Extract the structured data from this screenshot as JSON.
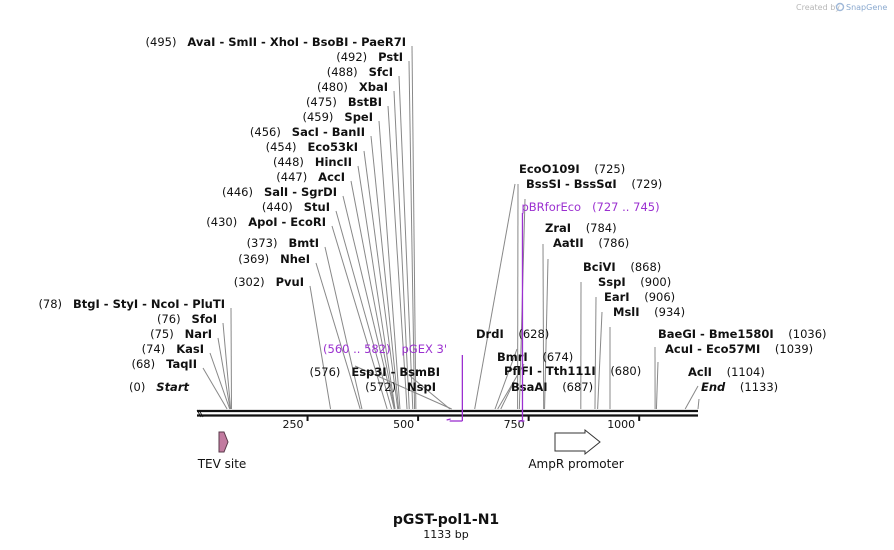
{
  "credit": {
    "text": "Created by",
    "brand": "SnapGene"
  },
  "plasmid": {
    "name": "pGST-pol1-N1",
    "length_label": "1133 bp",
    "length": 1133
  },
  "ruler": {
    "ticks": [
      {
        "pos": 250,
        "label": "250"
      },
      {
        "pos": 500,
        "label": "500"
      },
      {
        "pos": 750,
        "label": "750"
      },
      {
        "pos": 1000,
        "label": "1000"
      }
    ]
  },
  "sites": [
    {
      "pos": 495,
      "text": "AvaI  - SmII  - XhoI  - BsoBI  - PaeR7I",
      "num": "(495)",
      "side": "left"
    },
    {
      "pos": 492,
      "text": "PstI",
      "num": "(492)",
      "side": "left"
    },
    {
      "pos": 488,
      "text": "SfcI",
      "num": "(488)",
      "side": "left"
    },
    {
      "pos": 480,
      "text": "XbaI",
      "num": "(480)",
      "side": "left"
    },
    {
      "pos": 475,
      "text": "BstBI",
      "num": "(475)",
      "side": "left"
    },
    {
      "pos": 459,
      "text": "SpeI",
      "num": "(459)",
      "side": "left"
    },
    {
      "pos": 456,
      "text": "SacI  - BanII",
      "num": "(456)",
      "side": "left"
    },
    {
      "pos": 454,
      "text": "Eco53kI",
      "num": "(454)",
      "side": "left"
    },
    {
      "pos": 448,
      "text": "HincII",
      "num": "(448)",
      "side": "left"
    },
    {
      "pos": 447,
      "text": "AccI",
      "num": "(447)",
      "side": "left"
    },
    {
      "pos": 446,
      "text": "SalI  - SgrDI",
      "num": "(446)",
      "side": "left"
    },
    {
      "pos": 440,
      "text": "StuI",
      "num": "(440)",
      "side": "left"
    },
    {
      "pos": 430,
      "text": "ApoI  - EcoRI",
      "num": "(430)",
      "side": "left"
    },
    {
      "pos": 373,
      "text": "BmtI",
      "num": "(373)",
      "side": "left"
    },
    {
      "pos": 369,
      "text": "NheI",
      "num": "(369)",
      "side": "left"
    },
    {
      "pos": 302,
      "text": "PvuI",
      "num": "(302)",
      "side": "left"
    },
    {
      "pos": 78,
      "text": "BtgI  - StyI  - NcoI  - PluTI",
      "num": "(78)",
      "side": "left"
    },
    {
      "pos": 76,
      "text": "SfoI",
      "num": "(76)",
      "side": "left"
    },
    {
      "pos": 75,
      "text": "NarI",
      "num": "(75)",
      "side": "left"
    },
    {
      "pos": 74,
      "text": "KasI",
      "num": "(74)",
      "side": "left"
    },
    {
      "pos": 68,
      "text": "TaqII",
      "num": "(68)",
      "side": "left"
    },
    {
      "pos": 0,
      "text": "Start",
      "num": "(0)",
      "side": "left",
      "italic": true
    },
    {
      "pos": 576,
      "text": "Esp3I  - BsmBI",
      "num": "(576)",
      "side": "right-num-left"
    },
    {
      "pos": 572,
      "text": "NspI",
      "num": "(572)",
      "side": "right-num-left"
    },
    {
      "pos": 628,
      "text": "DrdI",
      "num": "(628)",
      "side": "right"
    },
    {
      "pos": 674,
      "text": "BmrI",
      "num": "(674)",
      "side": "right"
    },
    {
      "pos": 680,
      "text": "PflFI  - Tth111I",
      "num": "(680)",
      "side": "right"
    },
    {
      "pos": 687,
      "text": "BsaAI",
      "num": "(687)",
      "side": "right"
    },
    {
      "pos": 725,
      "text": "EcoO109I",
      "num": "(725)",
      "side": "right"
    },
    {
      "pos": 729,
      "text": "BssSI  - BssSαI",
      "num": "(729)",
      "side": "right"
    },
    {
      "pos": 784,
      "text": "ZraI",
      "num": "(784)",
      "side": "right"
    },
    {
      "pos": 786,
      "text": "AatII",
      "num": "(786)",
      "side": "right"
    },
    {
      "pos": 868,
      "text": "BciVI",
      "num": "(868)",
      "side": "right"
    },
    {
      "pos": 900,
      "text": "SspI",
      "num": "(900)",
      "side": "right"
    },
    {
      "pos": 906,
      "text": "EarI",
      "num": "(906)",
      "side": "right"
    },
    {
      "pos": 934,
      "text": "MslI",
      "num": "(934)",
      "side": "right"
    },
    {
      "pos": 1036,
      "text": "BaeGI  - Bme1580I",
      "num": "(1036)",
      "side": "right"
    },
    {
      "pos": 1039,
      "text": "AcuI  - Eco57MI",
      "num": "(1039)",
      "side": "right"
    },
    {
      "pos": 1104,
      "text": "AclI",
      "num": "(1104)",
      "side": "right"
    },
    {
      "pos": 1133,
      "text": "End",
      "num": "(1133)",
      "side": "right",
      "italic": true
    }
  ],
  "primers": [
    {
      "name": "pGEX 3'",
      "range": "(560 .. 582)",
      "start": 560,
      "end": 582,
      "direction": "reverse"
    },
    {
      "name": "pBRforEco",
      "range": "(727 .. 745)",
      "start": 727,
      "end": 745,
      "direction": "forward"
    }
  ],
  "features": [
    {
      "name": "TEV site",
      "start": 60,
      "end": 80,
      "direction": "forward",
      "color": "#c27ba0"
    },
    {
      "name": "AmpR promoter",
      "start": 805,
      "end": 905,
      "direction": "forward",
      "color": "#ffffff"
    }
  ],
  "colors": {
    "primer": "#9b30d0",
    "backbone": "#111111",
    "leader": "#888888"
  }
}
